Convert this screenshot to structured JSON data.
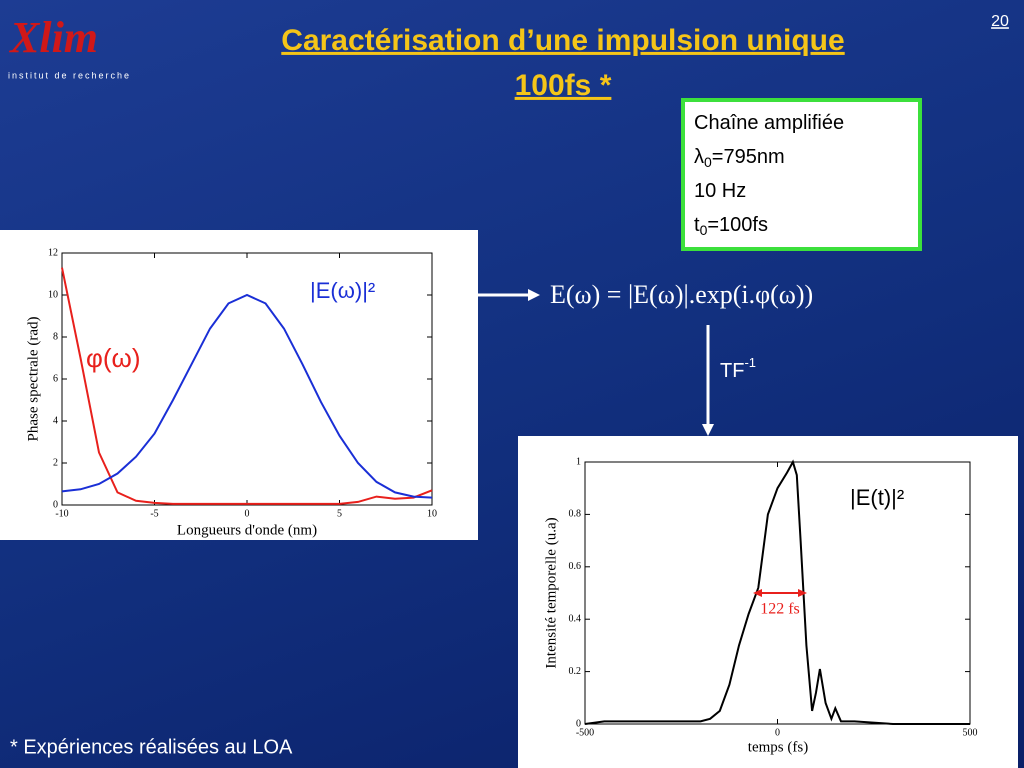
{
  "page_number": "20",
  "logo": {
    "name": "Xlim",
    "subtitle": "institut de recherche"
  },
  "title": [
    "Caractérisation d’une impulsion unique",
    "100fs *"
  ],
  "info_box": [
    {
      "main": "Chaîne amplifiée"
    },
    {
      "main": "λ",
      "sub": "0",
      "rest": "=795nm"
    },
    {
      "main": "10 Hz"
    },
    {
      "main": "t",
      "sub": "0",
      "rest": "=100fs"
    }
  ],
  "equation": "E(ω) = |E(ω)|.exp(i.φ(ω))",
  "transform": {
    "main": "TF",
    "sup": "-1"
  },
  "footnote": "* Expériences réalisées au LOA",
  "chart_data": [
    {
      "type": "line",
      "xlabel": "Longueurs d'onde (nm)",
      "ylabel": "Phase spectrale (rad)",
      "x": [
        -10,
        -9,
        -8,
        -7,
        -6,
        -5,
        -4,
        -3,
        -2,
        -1,
        0,
        1,
        2,
        3,
        4,
        5,
        6,
        7,
        8,
        9,
        10
      ],
      "series": [
        {
          "name": "φ(ω)",
          "color": "#e8201c",
          "values": [
            11.3,
            7,
            2.5,
            0.6,
            0.2,
            0.1,
            0.05,
            0.05,
            0.05,
            0.05,
            0.05,
            0.05,
            0.05,
            0.05,
            0.05,
            0.05,
            0.15,
            0.4,
            0.3,
            0.35,
            0.7
          ]
        },
        {
          "name": "|E(ω)|²",
          "color": "#1a2fd6",
          "values": [
            0.65,
            0.75,
            1.0,
            1.5,
            2.3,
            3.4,
            5.0,
            6.7,
            8.4,
            9.6,
            10,
            9.6,
            8.4,
            6.7,
            4.9,
            3.3,
            2.0,
            1.1,
            0.6,
            0.4,
            0.35
          ]
        }
      ],
      "xlim": [
        -10,
        10
      ],
      "xticks": [
        -10,
        -5,
        0,
        5,
        10
      ],
      "ylim": [
        0,
        12
      ],
      "yticks": [
        0,
        2,
        4,
        6,
        8,
        10,
        12
      ]
    },
    {
      "type": "line",
      "xlabel": "temps (fs)",
      "ylabel": "Intensité temporelle (u.a)",
      "x": [
        -500,
        -450,
        -400,
        -350,
        -300,
        -250,
        -200,
        -175,
        -150,
        -125,
        -100,
        -75,
        -50,
        -25,
        0,
        25,
        40,
        50,
        60,
        75,
        90,
        100,
        110,
        125,
        140,
        150,
        165,
        200,
        300,
        400,
        500
      ],
      "series": [
        {
          "name": "|E(t)|²",
          "color": "#000000",
          "values": [
            0,
            0.01,
            0.01,
            0.01,
            0.01,
            0.01,
            0.01,
            0.02,
            0.05,
            0.15,
            0.3,
            0.42,
            0.52,
            0.8,
            0.9,
            0.96,
            1,
            0.95,
            0.7,
            0.3,
            0.05,
            0.12,
            0.21,
            0.08,
            0.02,
            0.06,
            0.01,
            0.01,
            0,
            0,
            0
          ]
        }
      ],
      "annotation": "122 fs",
      "xlim": [
        -500,
        500
      ],
      "xticks": [
        -500,
        0,
        500
      ],
      "ylim": [
        0,
        1
      ],
      "yticks": [
        0,
        0.2,
        0.4,
        0.6,
        0.8,
        1
      ]
    }
  ]
}
